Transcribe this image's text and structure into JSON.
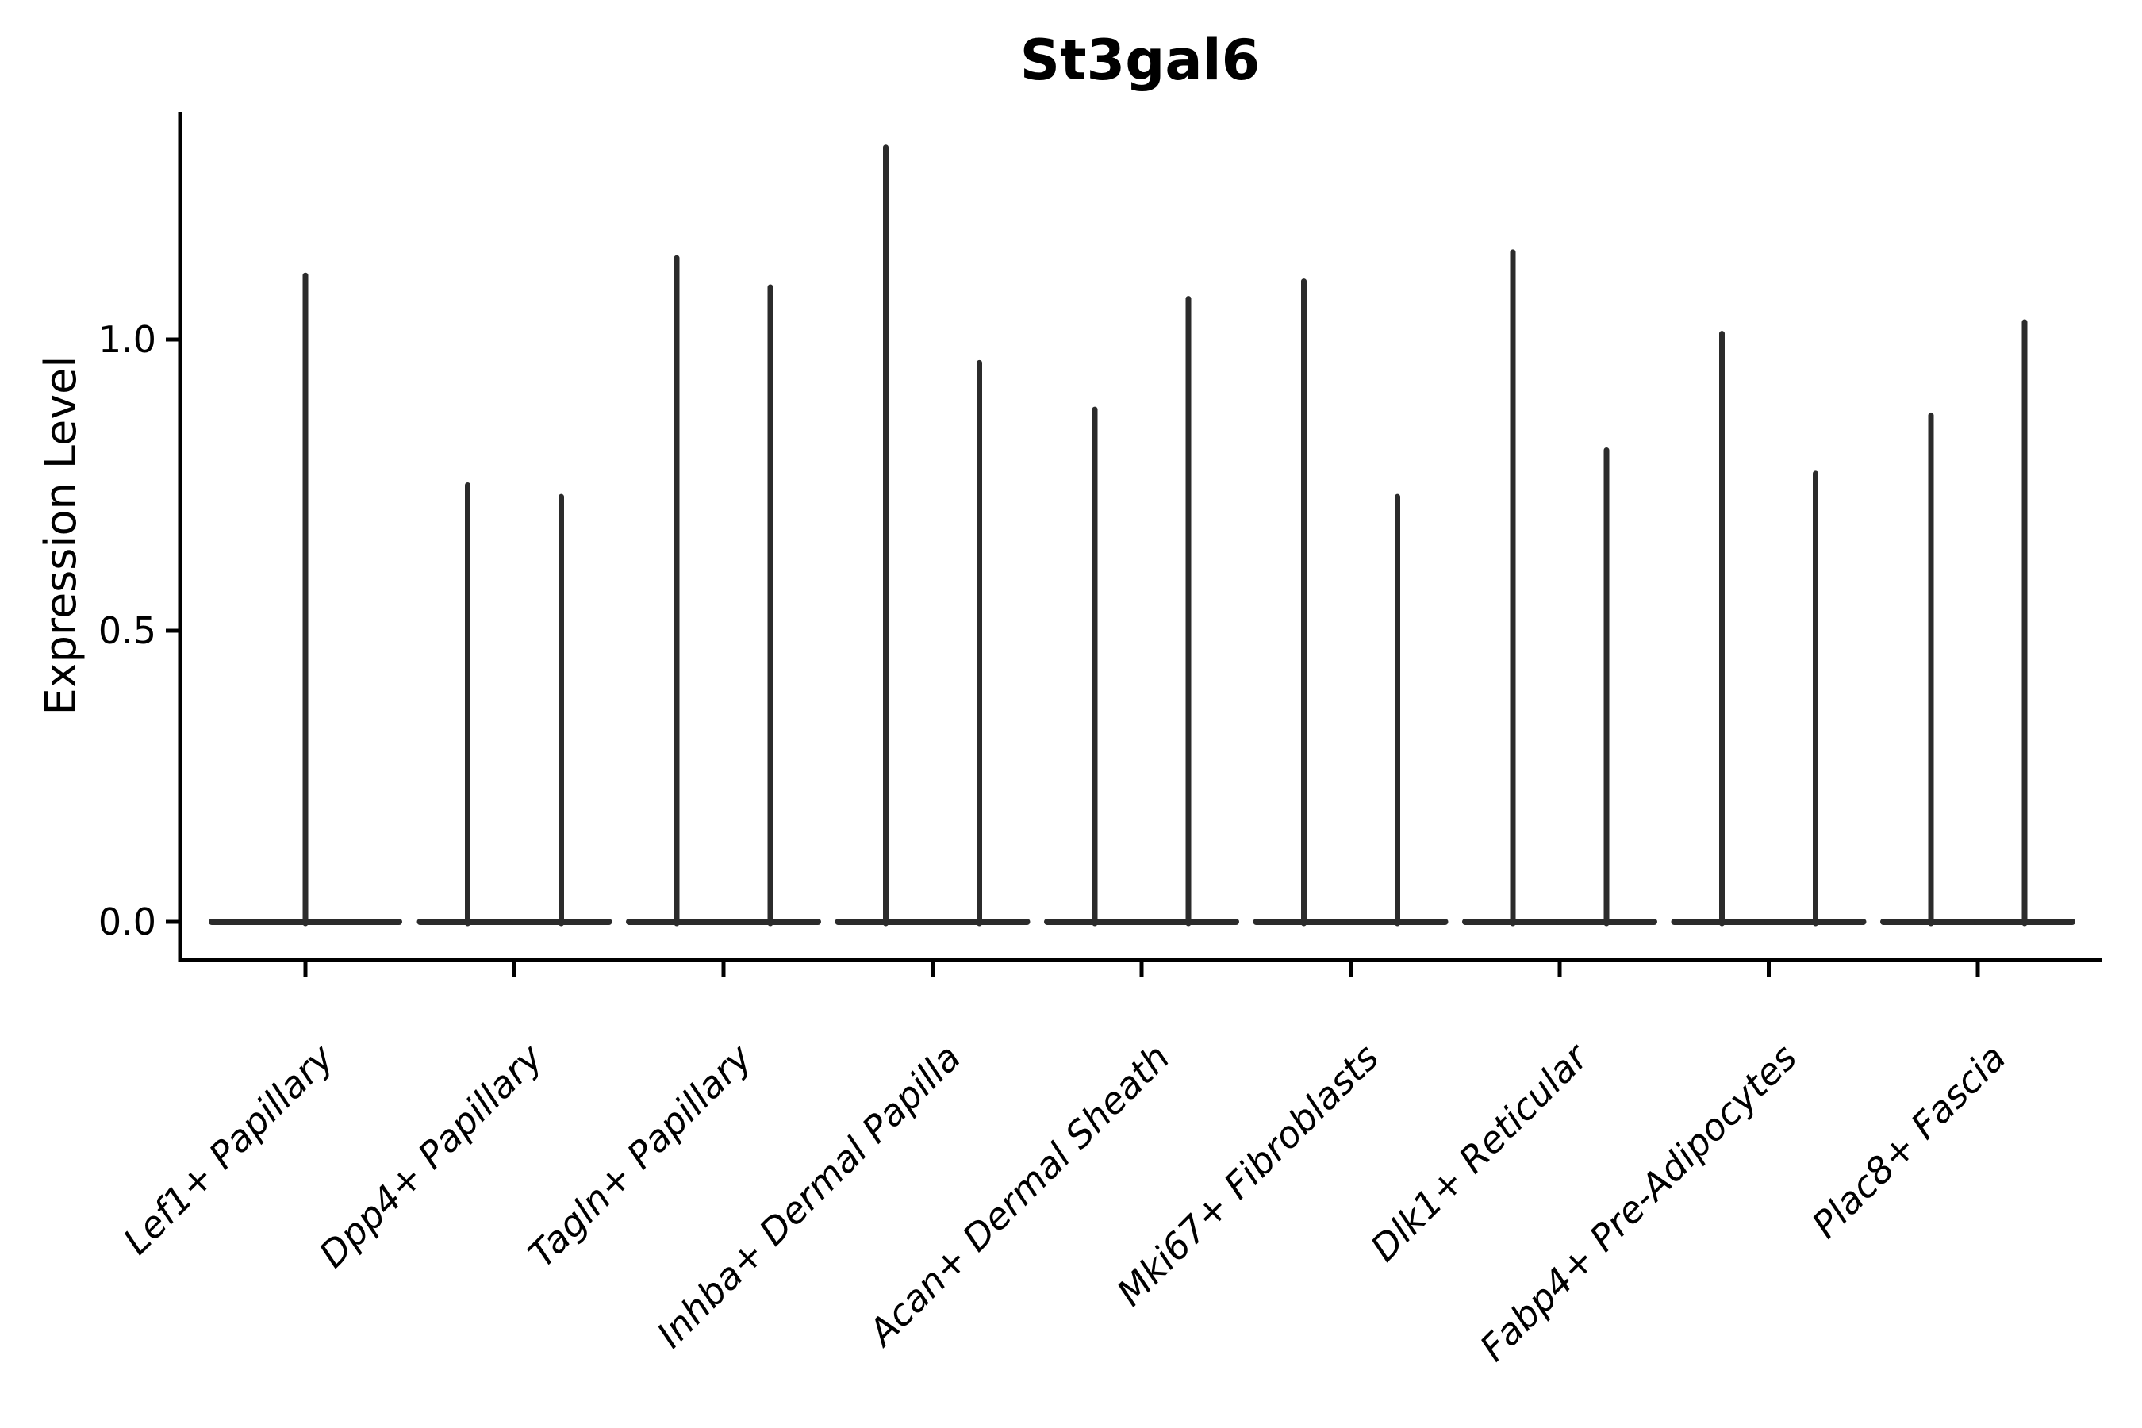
{
  "title": "St3gal6",
  "axes": {
    "ylabel": "Expression Level",
    "ytick_labels": [
      "0.0",
      "0.5",
      "1.0"
    ]
  },
  "colors": {
    "violin_stroke": "#2b2b2b",
    "axis_stroke": "#000000",
    "background": "#ffffff"
  },
  "chart_data": {
    "type": "violin",
    "title": "St3gal6",
    "xlabel": "",
    "ylabel": "Expression Level",
    "yticks": [
      0.0,
      0.5,
      1.0
    ],
    "ylim": [
      -0.07,
      1.39
    ],
    "grid": false,
    "legend": "none",
    "orientation": "vertical",
    "description": "Zero-inflated expression violins: each violin is a flat bulge at 0 with a thin spike rising to its maximum expression value. Category 1 has a single centered violin; categories 2-9 each have two dodged violins (left/right).",
    "categories": [
      "Lef1+ Papillary",
      "Dpp4+ Papillary",
      "Tagln+ Papillary",
      "Inhba+ Dermal Papilla",
      "Acan+ Dermal Sheath",
      "Mki67+ Fibroblasts",
      "Dlk1+ Reticular",
      "Fabp4+ Pre-Adipocytes",
      "Plac8+ Fascia"
    ],
    "violins": [
      {
        "category": "Lef1+ Papillary",
        "spikes": [
          {
            "position": "center",
            "peak": 1.11
          }
        ]
      },
      {
        "category": "Dpp4+ Papillary",
        "spikes": [
          {
            "position": "left",
            "peak": 0.75
          },
          {
            "position": "right",
            "peak": 0.73
          }
        ]
      },
      {
        "category": "Tagln+ Papillary",
        "spikes": [
          {
            "position": "left",
            "peak": 1.14
          },
          {
            "position": "right",
            "peak": 1.09
          }
        ]
      },
      {
        "category": "Inhba+ Dermal Papilla",
        "spikes": [
          {
            "position": "left",
            "peak": 1.33
          },
          {
            "position": "right",
            "peak": 0.96
          }
        ]
      },
      {
        "category": "Acan+ Dermal Sheath",
        "spikes": [
          {
            "position": "left",
            "peak": 0.88
          },
          {
            "position": "right",
            "peak": 1.07
          }
        ]
      },
      {
        "category": "Mki67+ Fibroblasts",
        "spikes": [
          {
            "position": "left",
            "peak": 1.1
          },
          {
            "position": "right",
            "peak": 0.73
          }
        ]
      },
      {
        "category": "Dlk1+ Reticular",
        "spikes": [
          {
            "position": "left",
            "peak": 1.15
          },
          {
            "position": "right",
            "peak": 0.81
          }
        ]
      },
      {
        "category": "Fabp4+ Pre-Adipocytes",
        "spikes": [
          {
            "position": "left",
            "peak": 1.01
          },
          {
            "position": "right",
            "peak": 0.77
          }
        ]
      },
      {
        "category": "Plac8+ Fascia",
        "spikes": [
          {
            "position": "left",
            "peak": 0.87
          },
          {
            "position": "right",
            "peak": 1.03
          }
        ]
      }
    ],
    "all_violins_baseline_value": 0.0
  }
}
